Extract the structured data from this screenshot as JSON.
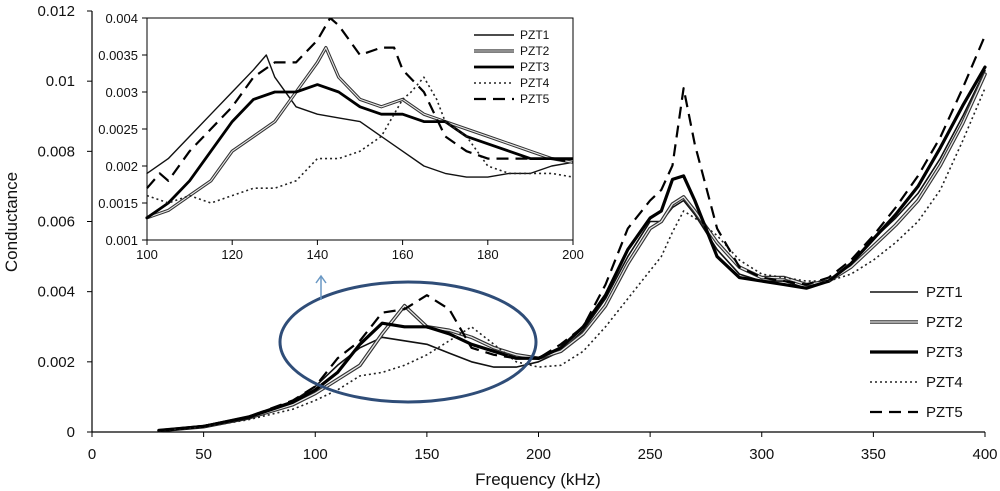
{
  "chart_data": [
    {
      "id": "main",
      "type": "line",
      "title": "",
      "xlabel": "Frequency (kHz)",
      "ylabel": "Conductance",
      "xlim": [
        0,
        400
      ],
      "ylim": [
        0,
        0.012
      ],
      "xticks": [
        "0",
        "50",
        "100",
        "150",
        "200",
        "250",
        "300",
        "350",
        "400"
      ],
      "yticks": [
        "0",
        "0.002",
        "0.004",
        "0.006",
        "0.008",
        "0.01",
        "0.012"
      ],
      "grid": false,
      "legend_position": "right",
      "series": [
        {
          "name": "PZT1",
          "style": "solid-thin",
          "x": [
            30,
            50,
            70,
            90,
            100,
            110,
            120,
            130,
            140,
            150,
            160,
            170,
            180,
            190,
            200,
            210,
            220,
            230,
            240,
            250,
            255,
            260,
            265,
            270,
            280,
            290,
            300,
            310,
            320,
            330,
            340,
            350,
            360,
            370,
            380,
            390,
            400
          ],
          "y": [
            5e-05,
            0.00018,
            0.00045,
            0.00088,
            0.0013,
            0.0019,
            0.0024,
            0.0027,
            0.0026,
            0.0025,
            0.00225,
            0.002,
            0.00185,
            0.00185,
            0.002,
            0.0023,
            0.0029,
            0.0038,
            0.005,
            0.006,
            0.006,
            0.0064,
            0.0066,
            0.0062,
            0.0052,
            0.0045,
            0.0043,
            0.0043,
            0.0041,
            0.0043,
            0.0048,
            0.0055,
            0.0061,
            0.0068,
            0.0078,
            0.009,
            0.0103
          ]
        },
        {
          "name": "PZT2",
          "style": "double",
          "x": [
            30,
            50,
            70,
            90,
            100,
            110,
            120,
            130,
            140,
            150,
            160,
            170,
            180,
            190,
            200,
            210,
            220,
            230,
            240,
            250,
            255,
            260,
            265,
            270,
            280,
            290,
            300,
            310,
            320,
            330,
            340,
            350,
            360,
            370,
            380,
            390,
            400
          ],
          "y": [
            4e-05,
            0.00015,
            0.0004,
            0.00078,
            0.0011,
            0.0015,
            0.0019,
            0.0028,
            0.0036,
            0.003,
            0.0029,
            0.0027,
            0.0024,
            0.0022,
            0.0021,
            0.0023,
            0.0028,
            0.0036,
            0.0048,
            0.0058,
            0.006,
            0.0065,
            0.0067,
            0.0063,
            0.0054,
            0.0047,
            0.0044,
            0.0044,
            0.0042,
            0.0043,
            0.0047,
            0.0053,
            0.0059,
            0.0066,
            0.0076,
            0.0088,
            0.0102
          ]
        },
        {
          "name": "PZT3",
          "style": "thick",
          "x": [
            30,
            50,
            70,
            90,
            100,
            110,
            120,
            130,
            140,
            150,
            160,
            170,
            180,
            190,
            200,
            210,
            220,
            230,
            240,
            250,
            255,
            260,
            265,
            270,
            280,
            290,
            300,
            310,
            320,
            330,
            340,
            350,
            360,
            370,
            380,
            390,
            400
          ],
          "y": [
            4e-05,
            0.00016,
            0.00042,
            0.00085,
            0.0012,
            0.0017,
            0.0025,
            0.0031,
            0.003,
            0.003,
            0.0028,
            0.0025,
            0.0023,
            0.0021,
            0.0021,
            0.0024,
            0.003,
            0.0039,
            0.0052,
            0.0061,
            0.0063,
            0.0072,
            0.0073,
            0.0066,
            0.005,
            0.0044,
            0.0043,
            0.0042,
            0.0041,
            0.0043,
            0.0048,
            0.0055,
            0.0062,
            0.007,
            0.0081,
            0.0093,
            0.0104
          ]
        },
        {
          "name": "PZT4",
          "style": "dotted",
          "x": [
            30,
            50,
            70,
            90,
            100,
            110,
            120,
            130,
            140,
            150,
            160,
            170,
            180,
            190,
            200,
            210,
            220,
            230,
            240,
            250,
            255,
            260,
            265,
            270,
            280,
            290,
            300,
            310,
            320,
            330,
            340,
            350,
            360,
            370,
            380,
            390,
            400
          ],
          "y": [
            4e-05,
            0.00014,
            0.00035,
            0.00065,
            0.0009,
            0.0012,
            0.0016,
            0.0017,
            0.0019,
            0.0022,
            0.0026,
            0.003,
            0.0025,
            0.002,
            0.00185,
            0.0019,
            0.0023,
            0.003,
            0.0038,
            0.0046,
            0.005,
            0.0057,
            0.0063,
            0.0061,
            0.0056,
            0.0049,
            0.0045,
            0.0044,
            0.0043,
            0.0043,
            0.0045,
            0.0049,
            0.0054,
            0.006,
            0.0069,
            0.0083,
            0.0098
          ]
        },
        {
          "name": "PZT5",
          "style": "dashed",
          "x": [
            30,
            50,
            70,
            90,
            100,
            110,
            120,
            130,
            140,
            150,
            160,
            170,
            180,
            190,
            200,
            210,
            220,
            230,
            240,
            250,
            255,
            260,
            265,
            270,
            280,
            290,
            300,
            310,
            320,
            330,
            340,
            350,
            360,
            370,
            380,
            390,
            400
          ],
          "y": [
            5e-05,
            0.00017,
            0.00043,
            0.0009,
            0.0013,
            0.0021,
            0.0026,
            0.0034,
            0.0035,
            0.0039,
            0.0035,
            0.0024,
            0.0022,
            0.0021,
            0.0021,
            0.0025,
            0.003,
            0.0042,
            0.0058,
            0.0066,
            0.0069,
            0.0076,
            0.0098,
            0.0082,
            0.0058,
            0.0047,
            0.0044,
            0.0043,
            0.0042,
            0.0044,
            0.0049,
            0.0056,
            0.0064,
            0.0073,
            0.0084,
            0.0098,
            0.0113
          ]
        }
      ]
    },
    {
      "id": "inset",
      "type": "line",
      "title": "",
      "xlabel": "",
      "ylabel": "",
      "xlim": [
        100,
        200
      ],
      "ylim": [
        0.001,
        0.004
      ],
      "xticks": [
        "100",
        "120",
        "140",
        "160",
        "180",
        "200"
      ],
      "yticks": [
        "0.001",
        "0.0015",
        "0.002",
        "0.0025",
        "0.003",
        "0.0035",
        "0.004"
      ],
      "grid": false,
      "legend_position": "top-right",
      "series": [
        {
          "name": "PZT1",
          "style": "solid-thin",
          "x": [
            100,
            105,
            110,
            115,
            120,
            125,
            128,
            130,
            135,
            140,
            145,
            150,
            155,
            160,
            165,
            170,
            175,
            180,
            185,
            190,
            195,
            200
          ],
          "y": [
            0.0019,
            0.0021,
            0.0024,
            0.0027,
            0.003,
            0.0033,
            0.0035,
            0.0032,
            0.0028,
            0.0027,
            0.00265,
            0.0026,
            0.0024,
            0.0022,
            0.002,
            0.0019,
            0.00185,
            0.00185,
            0.0019,
            0.0019,
            0.002,
            0.00205
          ]
        },
        {
          "name": "PZT2",
          "style": "double",
          "x": [
            100,
            105,
            110,
            115,
            120,
            125,
            130,
            135,
            140,
            142,
            145,
            150,
            155,
            160,
            165,
            170,
            175,
            180,
            185,
            190,
            195,
            200
          ],
          "y": [
            0.0013,
            0.0014,
            0.0016,
            0.0018,
            0.0022,
            0.0024,
            0.0026,
            0.003,
            0.0034,
            0.0036,
            0.0032,
            0.0029,
            0.0028,
            0.0029,
            0.0027,
            0.0026,
            0.0025,
            0.0024,
            0.0023,
            0.0022,
            0.0021,
            0.00205
          ]
        },
        {
          "name": "PZT3",
          "style": "thick",
          "x": [
            100,
            105,
            110,
            115,
            120,
            125,
            130,
            135,
            140,
            145,
            150,
            155,
            160,
            165,
            170,
            175,
            180,
            185,
            190,
            195,
            200
          ],
          "y": [
            0.0013,
            0.0015,
            0.0018,
            0.0022,
            0.0026,
            0.0029,
            0.003,
            0.003,
            0.0031,
            0.003,
            0.0028,
            0.0027,
            0.0027,
            0.0026,
            0.0026,
            0.0024,
            0.0023,
            0.0022,
            0.0021,
            0.0021,
            0.0021
          ]
        },
        {
          "name": "PZT4",
          "style": "dotted",
          "x": [
            100,
            105,
            110,
            115,
            120,
            125,
            130,
            135,
            140,
            145,
            150,
            155,
            160,
            162,
            165,
            168,
            170,
            175,
            180,
            185,
            190,
            195,
            200
          ],
          "y": [
            0.0016,
            0.0015,
            0.0016,
            0.0015,
            0.0016,
            0.0017,
            0.0017,
            0.0018,
            0.0021,
            0.0021,
            0.0022,
            0.0024,
            0.0029,
            0.003,
            0.0032,
            0.0029,
            0.0026,
            0.0024,
            0.002,
            0.0019,
            0.0019,
            0.0019,
            0.00185
          ]
        },
        {
          "name": "PZT5",
          "style": "dashed",
          "x": [
            100,
            103,
            105,
            110,
            115,
            120,
            125,
            130,
            135,
            140,
            143,
            145,
            150,
            155,
            158,
            160,
            165,
            170,
            175,
            180,
            185,
            190,
            195,
            200
          ],
          "y": [
            0.0017,
            0.0019,
            0.0018,
            0.0022,
            0.0025,
            0.0028,
            0.0032,
            0.0034,
            0.0034,
            0.0037,
            0.004,
            0.0039,
            0.0035,
            0.0036,
            0.0036,
            0.0033,
            0.003,
            0.0024,
            0.0022,
            0.0021,
            0.0021,
            0.0021,
            0.0021,
            0.00205
          ]
        }
      ]
    }
  ]
}
